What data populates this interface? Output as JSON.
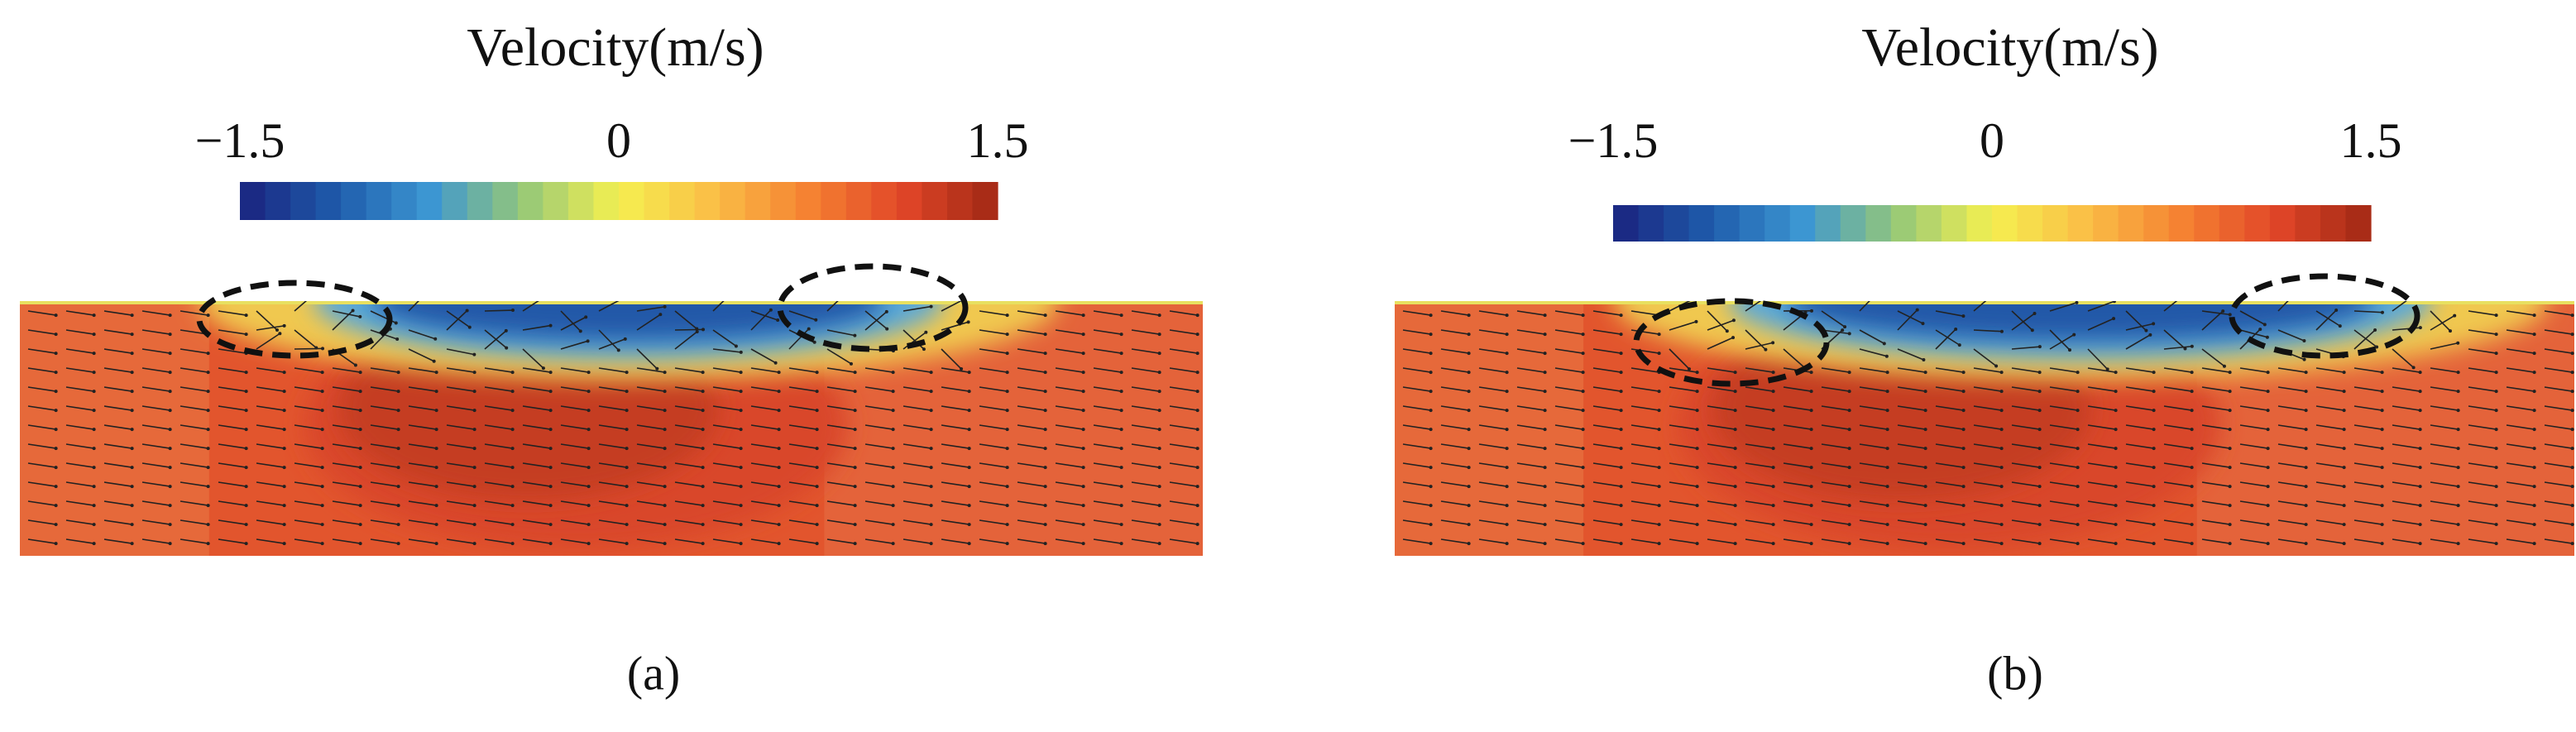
{
  "panels": [
    {
      "title": "Velocity(m/s)",
      "colorbar": {
        "lim": [
          -1.5,
          1.5
        ],
        "ticks": [
          {
            "value": -1.5,
            "label": "−1.5"
          },
          0,
          1.5
        ]
      },
      "caption": "(a)"
    },
    {
      "title": "Velocity(m/s)",
      "colorbar": {
        "lim": [
          -1.5,
          1.5
        ],
        "ticks": [
          {
            "value": -1.5,
            "label": "−1.5"
          },
          0,
          1.5
        ]
      },
      "caption": "(b)"
    }
  ]
}
